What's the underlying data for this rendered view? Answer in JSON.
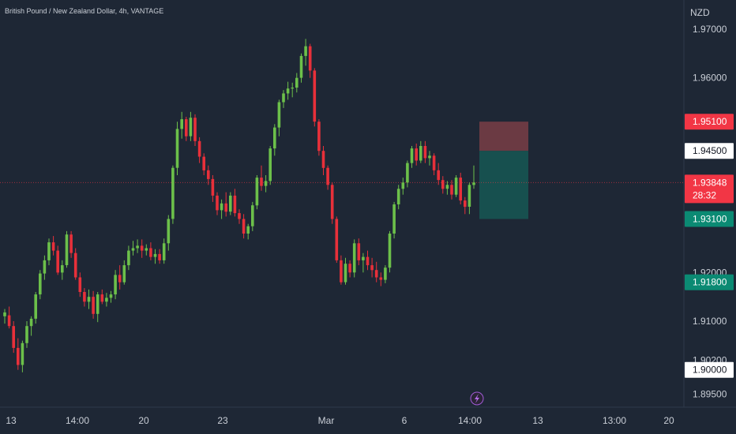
{
  "chart_data": {
    "type": "candlestick",
    "title": "British Pound / New Zealand Dollar, 4h, VANTAGE",
    "currency": "NZD",
    "y_ticks": [
      "1.97000",
      "1.96000",
      "1.92000",
      "1.91000",
      "1.90200",
      "1.89500"
    ],
    "x_ticks": [
      "13",
      "14:00",
      "20",
      "23",
      "Mar",
      "6",
      "14:00",
      "13",
      "13:00",
      "20"
    ],
    "ohlc": [
      [
        1.911,
        1.9125,
        1.9095,
        1.9118
      ],
      [
        1.9112,
        1.913,
        1.9085,
        1.909
      ],
      [
        1.909,
        1.91,
        1.9035,
        1.9045
      ],
      [
        1.9045,
        1.9065,
        1.9,
        1.901
      ],
      [
        1.901,
        1.906,
        1.8995,
        1.9055
      ],
      [
        1.9055,
        1.91,
        1.9045,
        1.909
      ],
      [
        1.909,
        1.911,
        1.907,
        1.9105
      ],
      [
        1.9105,
        1.916,
        1.9095,
        1.9155
      ],
      [
        1.9155,
        1.9205,
        1.9145,
        1.9198
      ],
      [
        1.9198,
        1.9235,
        1.9185,
        1.9225
      ],
      [
        1.9225,
        1.927,
        1.9215,
        1.9262
      ],
      [
        1.9262,
        1.9275,
        1.9235,
        1.9245
      ],
      [
        1.9245,
        1.9255,
        1.9195,
        1.92
      ],
      [
        1.92,
        1.9225,
        1.9185,
        1.9215
      ],
      [
        1.9215,
        1.9285,
        1.921,
        1.9278
      ],
      [
        1.9278,
        1.9285,
        1.923,
        1.924
      ],
      [
        1.924,
        1.925,
        1.9185,
        1.919
      ],
      [
        1.919,
        1.92,
        1.915,
        1.916
      ],
      [
        1.916,
        1.9168,
        1.913,
        1.914
      ],
      [
        1.914,
        1.9165,
        1.9125,
        1.915
      ],
      [
        1.915,
        1.9162,
        1.9105,
        1.9115
      ],
      [
        1.9115,
        1.916,
        1.9098,
        1.9155
      ],
      [
        1.9155,
        1.9165,
        1.9135,
        1.914
      ],
      [
        1.914,
        1.9158,
        1.913,
        1.9148
      ],
      [
        1.9148,
        1.9162,
        1.9138,
        1.9155
      ],
      [
        1.9155,
        1.9205,
        1.9145,
        1.9195
      ],
      [
        1.9195,
        1.9215,
        1.9165,
        1.918
      ],
      [
        1.918,
        1.9225,
        1.9175,
        1.9215
      ],
      [
        1.9215,
        1.9255,
        1.9205,
        1.9245
      ],
      [
        1.9245,
        1.9265,
        1.9235,
        1.925
      ],
      [
        1.925,
        1.9268,
        1.924,
        1.9255
      ],
      [
        1.9255,
        1.9268,
        1.923,
        1.9245
      ],
      [
        1.9245,
        1.9258,
        1.9235,
        1.925
      ],
      [
        1.925,
        1.9262,
        1.9225,
        1.9232
      ],
      [
        1.9232,
        1.9248,
        1.9218,
        1.9238
      ],
      [
        1.9238,
        1.9248,
        1.9218,
        1.9225
      ],
      [
        1.9225,
        1.927,
        1.9218,
        1.926
      ],
      [
        1.926,
        1.9318,
        1.9245,
        1.931
      ],
      [
        1.931,
        1.942,
        1.93,
        1.9415
      ],
      [
        1.9415,
        1.951,
        1.94,
        1.9495
      ],
      [
        1.9495,
        1.953,
        1.9475,
        1.9515
      ],
      [
        1.9515,
        1.952,
        1.947,
        1.948
      ],
      [
        1.948,
        1.953,
        1.947,
        1.9518
      ],
      [
        1.9518,
        1.9525,
        1.946,
        1.947
      ],
      [
        1.947,
        1.9478,
        1.9425,
        1.9438
      ],
      [
        1.9438,
        1.9445,
        1.94,
        1.941
      ],
      [
        1.941,
        1.942,
        1.938,
        1.9392
      ],
      [
        1.9392,
        1.94,
        1.9345,
        1.9358
      ],
      [
        1.9358,
        1.9365,
        1.9318,
        1.9328
      ],
      [
        1.9328,
        1.935,
        1.931,
        1.9342
      ],
      [
        1.9342,
        1.9365,
        1.9315,
        1.9325
      ],
      [
        1.9325,
        1.9365,
        1.9318,
        1.9358
      ],
      [
        1.9358,
        1.9372,
        1.9315,
        1.9322
      ],
      [
        1.9322,
        1.933,
        1.93,
        1.931
      ],
      [
        1.931,
        1.932,
        1.927,
        1.928
      ],
      [
        1.928,
        1.93,
        1.9268,
        1.9295
      ],
      [
        1.9295,
        1.9345,
        1.9285,
        1.9338
      ],
      [
        1.9338,
        1.94,
        1.933,
        1.9395
      ],
      [
        1.9395,
        1.942,
        1.9368,
        1.9378
      ],
      [
        1.9378,
        1.94,
        1.9365,
        1.9388
      ],
      [
        1.9388,
        1.946,
        1.938,
        1.9455
      ],
      [
        1.9455,
        1.9505,
        1.944,
        1.9498
      ],
      [
        1.9498,
        1.9555,
        1.948,
        1.955
      ],
      [
        1.955,
        1.9575,
        1.9538,
        1.9568
      ],
      [
        1.9568,
        1.9592,
        1.9555,
        1.9578
      ],
      [
        1.9578,
        1.959,
        1.956,
        1.958
      ],
      [
        1.958,
        1.961,
        1.957,
        1.96
      ],
      [
        1.96,
        1.965,
        1.959,
        1.9645
      ],
      [
        1.9645,
        1.968,
        1.9625,
        1.9665
      ],
      [
        1.9665,
        1.967,
        1.96,
        1.9615
      ],
      [
        1.9615,
        1.962,
        1.95,
        1.951
      ],
      [
        1.951,
        1.9515,
        1.944,
        1.945
      ],
      [
        1.945,
        1.946,
        1.94,
        1.9415
      ],
      [
        1.9415,
        1.942,
        1.937,
        1.938
      ],
      [
        1.938,
        1.9385,
        1.93,
        1.931
      ],
      [
        1.931,
        1.9315,
        1.922,
        1.9225
      ],
      [
        1.9225,
        1.9235,
        1.9175,
        1.918
      ],
      [
        1.918,
        1.923,
        1.9175,
        1.9218
      ],
      [
        1.9218,
        1.9225,
        1.919,
        1.92
      ],
      [
        1.92,
        1.9268,
        1.919,
        1.926
      ],
      [
        1.926,
        1.927,
        1.9215,
        1.9225
      ],
      [
        1.9225,
        1.924,
        1.92,
        1.9232
      ],
      [
        1.9232,
        1.9245,
        1.9205,
        1.9215
      ],
      [
        1.9215,
        1.923,
        1.919,
        1.9205
      ],
      [
        1.9205,
        1.9222,
        1.918,
        1.919
      ],
      [
        1.919,
        1.92,
        1.9172,
        1.9185
      ],
      [
        1.9185,
        1.9215,
        1.9178,
        1.921
      ],
      [
        1.921,
        1.9285,
        1.92,
        1.928
      ],
      [
        1.928,
        1.9345,
        1.927,
        1.934
      ],
      [
        1.934,
        1.938,
        1.933,
        1.9372
      ],
      [
        1.9372,
        1.9395,
        1.936,
        1.9385
      ],
      [
        1.9385,
        1.943,
        1.9375,
        1.9425
      ],
      [
        1.9425,
        1.946,
        1.9415,
        1.9455
      ],
      [
        1.9455,
        1.9465,
        1.942,
        1.943
      ],
      [
        1.943,
        1.947,
        1.9425,
        1.946
      ],
      [
        1.946,
        1.947,
        1.9425,
        1.9435
      ],
      [
        1.9435,
        1.945,
        1.942,
        1.944
      ],
      [
        1.944,
        1.9445,
        1.94,
        1.941
      ],
      [
        1.941,
        1.9425,
        1.938,
        1.939
      ],
      [
        1.939,
        1.9398,
        1.9362,
        1.9372
      ],
      [
        1.9372,
        1.9388,
        1.936,
        1.938
      ],
      [
        1.938,
        1.939,
        1.935,
        1.936
      ],
      [
        1.936,
        1.94,
        1.9355,
        1.9395
      ],
      [
        1.9395,
        1.9405,
        1.934,
        1.9348
      ],
      [
        1.9348,
        1.9355,
        1.932,
        1.9335
      ],
      [
        1.9335,
        1.9385,
        1.932,
        1.938
      ],
      [
        1.938,
        1.942,
        1.9372,
        1.9385
      ]
    ],
    "last_price": "1.93848",
    "countdown": "28:32",
    "position": {
      "type": "short",
      "entry": "1.94500",
      "stop": "1.95100",
      "target": "1.93100"
    },
    "price_tags": [
      {
        "value": "1.95100",
        "kind": "stop"
      },
      {
        "value": "1.94500",
        "kind": "entry"
      },
      {
        "value": "1.93848",
        "kind": "last"
      },
      {
        "value": "1.93100",
        "kind": "target"
      },
      {
        "value": "1.91800",
        "kind": "level"
      },
      {
        "value": "1.90000",
        "kind": "level-white"
      }
    ],
    "colors": {
      "background": "#1e2735",
      "up": "#6cc04a",
      "down": "#e8303a",
      "stop_zone": "#6b3a43",
      "target_zone": "#17504f",
      "tag_red": "#f23645",
      "tag_green": "#0b8a73",
      "tag_white": "#ffffff",
      "text": "#c9ced6"
    },
    "grid": false,
    "legend": "none"
  }
}
